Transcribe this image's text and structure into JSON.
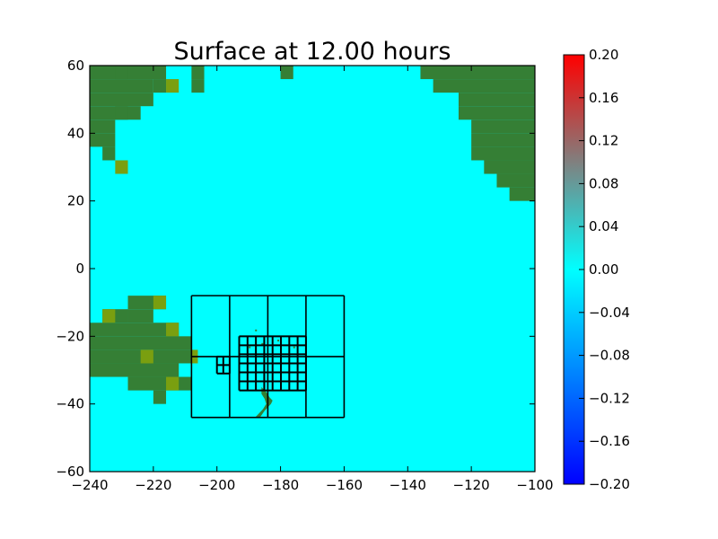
{
  "chart_data": {
    "type": "heatmap",
    "title": "Surface at 12.00 hours",
    "xlabel": "",
    "ylabel": "",
    "xlim": [
      -240,
      -100
    ],
    "ylim": [
      -60,
      60
    ],
    "xticks": [
      "−240",
      "−220",
      "−200",
      "−180",
      "−160",
      "−140",
      "−120",
      "−100"
    ],
    "yticks": [
      "60",
      "40",
      "20",
      "0",
      "−20",
      "−40",
      "−60"
    ],
    "colorbar": {
      "range": [
        -0.2,
        0.2
      ],
      "ticks": [
        "0.20",
        "0.16",
        "0.12",
        "0.08",
        "0.04",
        "0.00",
        "−0.04",
        "−0.08",
        "−0.12",
        "−0.16",
        "−0.20"
      ],
      "colors": [
        "#0000ff",
        "#00ffff",
        "#ff0000"
      ]
    },
    "surface_value_water": 0.0,
    "colors": {
      "water": "#00ffff",
      "land": "#357f35",
      "land_alt": "#7a9f10",
      "grid_lines": "#000000"
    },
    "grid_patches": [
      {
        "level": 1,
        "x_range": [
          -208,
          -160
        ],
        "y_range": [
          -44,
          -8
        ],
        "cols": 4,
        "rows": 2
      },
      {
        "level": 2,
        "x_range": [
          -193,
          -172
        ],
        "y_range": [
          -36,
          -20
        ],
        "cols": 8,
        "rows": 6
      },
      {
        "level": 2,
        "x_range": [
          -200,
          -196
        ],
        "y_range": [
          -31,
          -26
        ],
        "cols": 2,
        "rows": 2
      }
    ]
  }
}
